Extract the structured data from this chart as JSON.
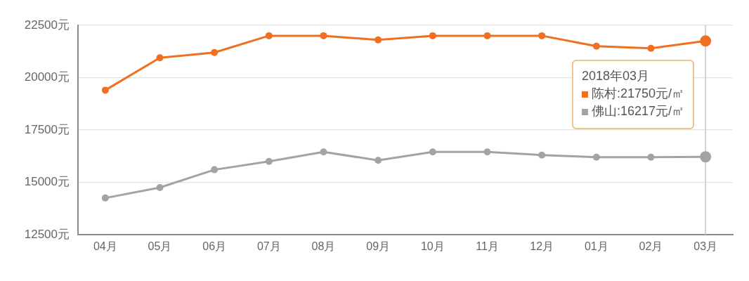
{
  "chart_data": {
    "type": "line",
    "categories": [
      "04月",
      "05月",
      "06月",
      "07月",
      "08月",
      "09月",
      "10月",
      "11月",
      "12月",
      "01月",
      "02月",
      "03月"
    ],
    "series": [
      {
        "name": "陈村",
        "color": "#f07022",
        "values": [
          19400,
          20950,
          21200,
          22000,
          22000,
          21800,
          22000,
          22000,
          22000,
          21500,
          21400,
          21750
        ]
      },
      {
        "name": "佛山",
        "color": "#a3a3a3",
        "values": [
          14250,
          14750,
          15600,
          16000,
          16450,
          16050,
          16450,
          16450,
          16300,
          16200,
          16200,
          16217
        ]
      }
    ],
    "ylim": [
      12500,
      22500
    ],
    "yticks": [
      {
        "value": 12500,
        "label": "12500元"
      },
      {
        "value": 15000,
        "label": "15000元"
      },
      {
        "value": 17500,
        "label": "17500元"
      },
      {
        "value": 20000,
        "label": "20000元"
      },
      {
        "value": 22500,
        "label": "22500元"
      }
    ],
    "grid": "y",
    "legend": "top right",
    "legend_title": "2018年03月",
    "marker": "circle",
    "line_style": "solid",
    "annotations": [
      ":21750元/㎡",
      ":16217元/㎡"
    ],
    "ref_lines": [
      {
        "axis": "x",
        "value": "03月",
        "color": "#c8c8c8"
      }
    ]
  }
}
